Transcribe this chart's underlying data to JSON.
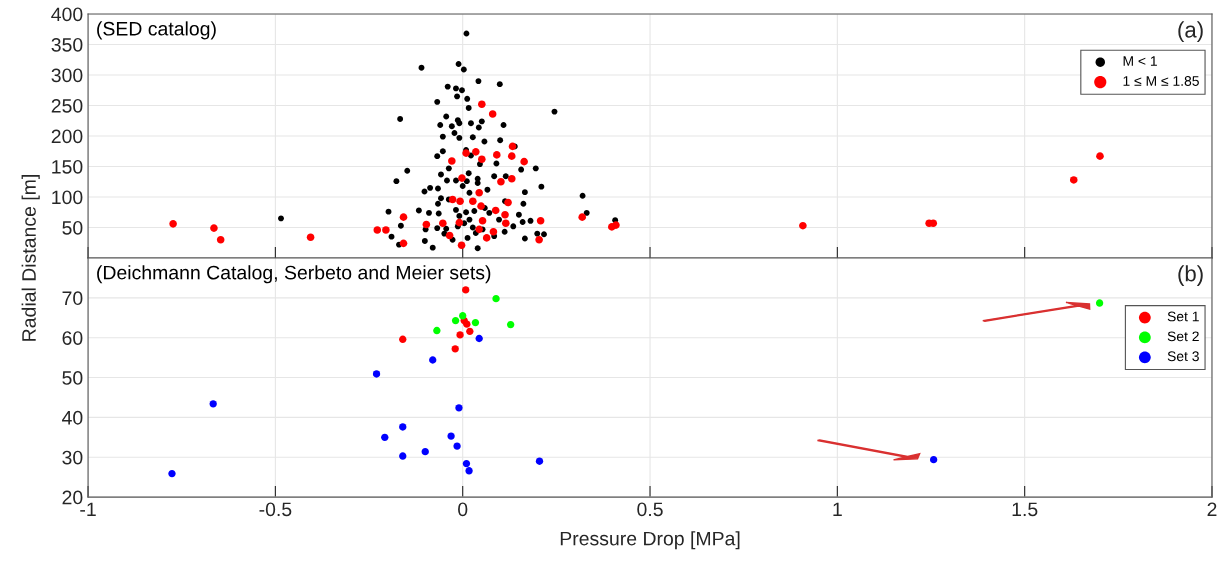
{
  "chart_data": [
    {
      "type": "scatter",
      "ylabel": "Radial Distance [m]",
      "annotations": [
        "(SED catalog)",
        "(a)"
      ],
      "xlim": [
        -1,
        2
      ],
      "xticks": [
        -1,
        -0.5,
        0,
        0.5,
        1,
        1.5,
        2
      ],
      "ylim": [
        0,
        400
      ],
      "yticks": [
        50,
        100,
        150,
        200,
        250,
        300,
        350,
        400
      ],
      "tick_labels": "y",
      "grid": true,
      "legend": "top right",
      "marker": "circle",
      "series": [
        {
          "name": "M < 1",
          "color": "#000000",
          "x": [
            0.01,
            -0.11,
            -0.011,
            0.003,
            0.042,
            0.099,
            -0.04,
            -0.018,
            -0.002,
            -0.068,
            -0.015,
            0.012,
            0.016,
            -0.167,
            -0.044,
            -0.013,
            -0.009,
            0.051,
            -0.06,
            -0.029,
            0.022,
            0.043,
            0.109,
            0.245,
            -0.053,
            -0.022,
            -0.009,
            0.027,
            0.058,
            0.1,
            0.139,
            -0.068,
            -0.053,
            0.009,
            0.022,
            0.046,
            0.09,
            0.195,
            0.156,
            -0.037,
            -0.148,
            -0.058,
            0.016,
            -0.177,
            -0.042,
            -0.018,
            0.011,
            0.04,
            0.084,
            0.115,
            0.21,
            -0.102,
            -0.087,
            -0.066,
            -0.058,
            -0.037,
            0,
            0.018,
            0.04,
            0.066,
            0.166,
            0.113,
            0.162,
            -0.066,
            -0.117,
            -0.09,
            -0.064,
            -0.198,
            -0.018,
            0.009,
            0.031,
            0.059,
            0.071,
            0.15,
            0.181,
            0.16,
            0.097,
            0.135,
            0.018,
            -0.013,
            -0.044,
            -0.068,
            -0.099,
            0.035,
            0.112,
            0.199,
            0.217,
            0.166,
            0.084,
            0.013,
            -0.027,
            -0.049,
            -0.101,
            -0.08,
            0.04,
            -0.009,
            0.004,
            0.027,
            0.053,
            -0.485,
            0.32,
            0.331,
            0.407,
            -0.19,
            -0.17,
            -0.165
          ],
          "values": [
            368,
            312,
            318,
            309,
            290,
            285,
            281,
            278,
            275,
            256,
            265,
            261,
            246,
            228,
            232,
            226,
            221,
            224,
            218,
            216,
            221,
            214,
            218,
            240,
            199,
            205,
            197,
            198,
            191,
            193,
            183,
            167,
            175,
            177,
            168,
            154,
            155,
            147,
            145,
            147,
            143,
            137,
            139,
            126,
            127,
            127,
            126,
            130,
            134,
            134,
            117,
            109,
            115,
            114,
            98,
            96,
            118,
            107,
            123,
            112,
            108,
            93,
            89,
            89,
            78,
            74,
            73,
            76,
            79,
            75,
            77,
            82,
            74,
            71,
            61,
            59,
            63,
            52,
            63,
            52,
            48,
            49,
            47,
            41,
            43,
            40,
            39,
            32,
            36,
            33,
            30,
            40,
            28,
            17,
            16,
            69,
            57,
            50,
            47,
            65,
            102,
            74,
            62,
            35,
            22,
            53
          ]
        },
        {
          "name": "1 ≤ M ≤ 1.85",
          "color": "#ff0000",
          "x": [
            0.051,
            0.08,
            0.133,
            0.091,
            0.131,
            0.164,
            0.051,
            0.035,
            0.009,
            -0.029,
            -0.002,
            0.131,
            0.102,
            0.044,
            0.121,
            -0.027,
            -0.007,
            0.027,
            0.088,
            0.113,
            0.049,
            0.208,
            0.319,
            0.115,
            0.053,
            -0.053,
            -0.097,
            -0.158,
            -0.228,
            -0.205,
            -0.158,
            -0.035,
            -0.003,
            0.064,
            0.082,
            0.204,
            -0.009,
            0.044,
            -0.773,
            -0.664,
            -0.646,
            -0.406,
            0.398,
            0.409,
            0.908,
            1.245,
            1.256,
            1.631,
            1.701
          ],
          "values": [
            252,
            236,
            183,
            169,
            167,
            158,
            162,
            174,
            172,
            159,
            131,
            130,
            125,
            107,
            91,
            96,
            93,
            93,
            78,
            71,
            85,
            61,
            67,
            57,
            61,
            57,
            55,
            67,
            46,
            46,
            24,
            37,
            21,
            33,
            43,
            30,
            58,
            47,
            56,
            49,
            30,
            34,
            51,
            54,
            53,
            57,
            57,
            128,
            167
          ]
        }
      ]
    },
    {
      "type": "scatter",
      "xlabel": "Pressure Drop [MPa]",
      "annotations": [
        "(Deichmann Catalog, Serbeto and Meier sets)",
        "(b)"
      ],
      "xlim": [
        -1,
        2
      ],
      "xticks": [
        -1,
        -0.5,
        0,
        0.5,
        1,
        1.5,
        2
      ],
      "ylim": [
        20,
        80
      ],
      "yticks": [
        20,
        30,
        40,
        50,
        60,
        70
      ],
      "grid": true,
      "legend": "right",
      "marker": "circle",
      "series": [
        {
          "name": "Set 1",
          "color": "#ff0000",
          "x": [
            0.008,
            -0.16,
            0.004,
            0.011,
            -0.007,
            0.019,
            -0.02
          ],
          "values": [
            72.0,
            59.6,
            64.3,
            63.4,
            60.7,
            61.6,
            57.2
          ]
        },
        {
          "name": "Set 2",
          "color": "#00ff00",
          "x": [
            0.089,
            0.0,
            -0.019,
            0.034,
            0.128,
            -0.069,
            1.7
          ],
          "values": [
            69.8,
            65.5,
            64.3,
            63.8,
            63.3,
            61.8,
            68.7
          ]
        },
        {
          "name": "Set 3",
          "color": "#0000ff",
          "x": [
            0.044,
            -0.08,
            -0.23,
            -0.666,
            -0.01,
            -0.16,
            -0.208,
            -0.031,
            -0.015,
            -0.1,
            -0.16,
            0.01,
            0.017,
            0.205,
            -0.776,
            1.257
          ],
          "values": [
            59.8,
            54.4,
            50.9,
            43.4,
            42.4,
            37.6,
            35.0,
            35.3,
            32.8,
            31.4,
            30.3,
            28.4,
            26.6,
            29.0,
            25.9,
            29.4
          ]
        }
      ]
    }
  ]
}
